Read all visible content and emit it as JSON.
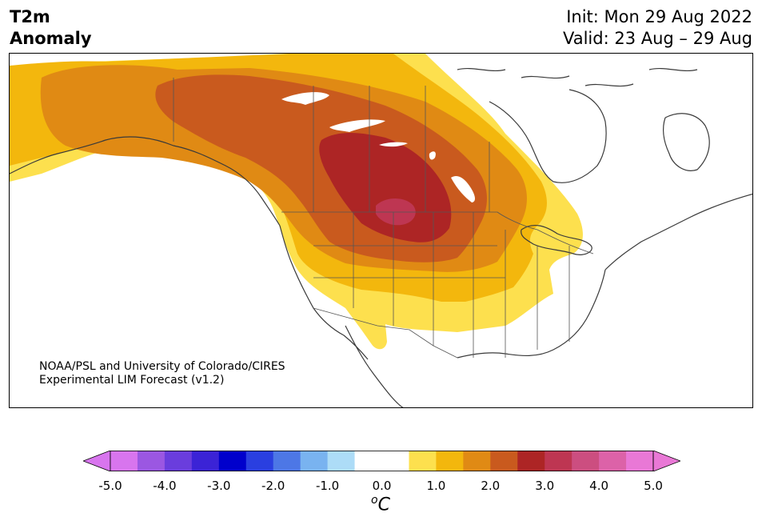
{
  "header": {
    "title_line1": "T2m",
    "title_line2": "Anomaly",
    "init": "Init: Mon 29 Aug 2022",
    "valid": "Valid: 23 Aug – 29 Aug"
  },
  "credit": {
    "line1": "NOAA/PSL and University of Colorado/CIRES",
    "line2": "Experimental LIM Forecast (v1.2)"
  },
  "colorbar": {
    "unit_sup": "o",
    "unit_base": "C",
    "ticks": [
      "-5.0",
      "-4.0",
      "-3.0",
      "-2.0",
      "-1.0",
      "0.0",
      "1.0",
      "2.0",
      "3.0",
      "4.0",
      "5.0"
    ],
    "colors": [
      "#d875ee",
      "#9b57e2",
      "#6a3ddd",
      "#3b23d6",
      "#0000cc",
      "#2a3fe0",
      "#4d77e6",
      "#79b3f0",
      "#addcf7",
      "#ffffff",
      "#ffffff",
      "#fde04e",
      "#f3b70d",
      "#e08a14",
      "#c95a1e",
      "#ad2525",
      "#be3652",
      "#cc4e80",
      "#dc62a8",
      "#e978d6"
    ],
    "extend_low": "#d875ee",
    "extend_high": "#e978d6"
  }
}
